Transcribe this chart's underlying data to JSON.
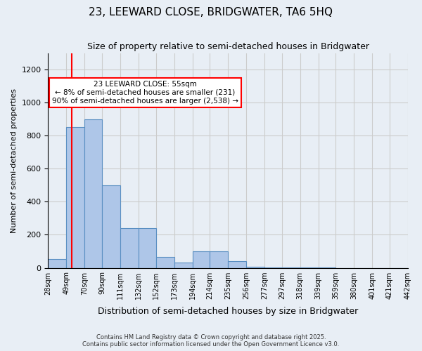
{
  "title": "23, LEEWARD CLOSE, BRIDGWATER, TA6 5HQ",
  "subtitle": "Size of property relative to semi-detached houses in Bridgwater",
  "xlabel": "Distribution of semi-detached houses by size in Bridgwater",
  "ylabel": "Number of semi-detached properties",
  "bin_labels": [
    "28sqm",
    "49sqm",
    "70sqm",
    "90sqm",
    "111sqm",
    "132sqm",
    "152sqm",
    "173sqm",
    "194sqm",
    "214sqm",
    "235sqm",
    "256sqm",
    "277sqm",
    "297sqm",
    "318sqm",
    "339sqm",
    "359sqm",
    "380sqm",
    "401sqm",
    "421sqm",
    "442sqm"
  ],
  "bin_edges": [
    28,
    49,
    70,
    90,
    111,
    132,
    152,
    173,
    194,
    214,
    235,
    256,
    277,
    297,
    318,
    339,
    359,
    380,
    401,
    421,
    442
  ],
  "bar_heights": [
    55,
    850,
    900,
    500,
    240,
    240,
    65,
    30,
    100,
    100,
    40,
    5,
    3,
    2,
    1,
    1,
    0,
    0,
    0,
    0
  ],
  "bar_color": "#aec6e8",
  "bar_edgecolor": "#5a8fc2",
  "property_size": 55,
  "property_bin_index": 1,
  "vline_x": 55,
  "vline_color": "red",
  "annotation_title": "23 LEEWARD CLOSE: 55sqm",
  "annotation_line1": "← 8% of semi-detached houses are smaller (231)",
  "annotation_line2": "90% of semi-detached houses are larger (2,538) →",
  "annotation_box_color": "white",
  "annotation_box_edgecolor": "red",
  "ylim": [
    0,
    1300
  ],
  "yticks": [
    0,
    200,
    400,
    600,
    800,
    1000,
    1200
  ],
  "grid_color": "#cccccc",
  "background_color": "#e8eef5",
  "footer_line1": "Contains HM Land Registry data © Crown copyright and database right 2025.",
  "footer_line2": "Contains public sector information licensed under the Open Government Licence v3.0."
}
